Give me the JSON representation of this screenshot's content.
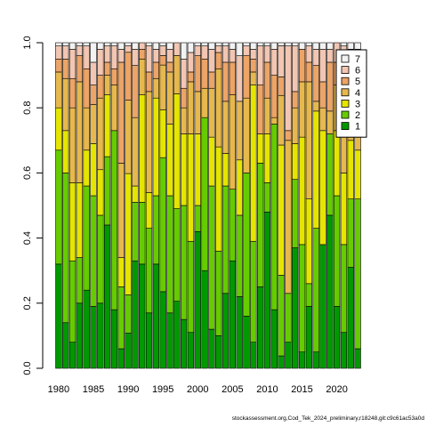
{
  "chart_data": {
    "type": "bar",
    "stacked": true,
    "x": [
      1980,
      1981,
      1982,
      1983,
      1984,
      1985,
      1986,
      1987,
      1988,
      1989,
      1990,
      1991,
      1992,
      1993,
      1994,
      1995,
      1996,
      1997,
      1998,
      1999,
      2000,
      2001,
      2002,
      2003,
      2004,
      2005,
      2006,
      2007,
      2008,
      2009,
      2010,
      2011,
      2012,
      2013,
      2014,
      2015,
      2016,
      2017,
      2018,
      2019,
      2020,
      2021,
      2022,
      2023
    ],
    "x_tick_labels": [
      "1980",
      "1985",
      "1990",
      "1995",
      "2000",
      "2005",
      "2010",
      "2015",
      "2020"
    ],
    "y_tick_labels": [
      "0.0",
      "0.2",
      "0.4",
      "0.6",
      "0.8",
      "1.0"
    ],
    "ylim": [
      0,
      1
    ],
    "legend_position": "top-right",
    "legend_order": [
      "7",
      "6",
      "5",
      "4",
      "3",
      "2",
      "1"
    ],
    "series": [
      {
        "name": "1",
        "color": "#009900",
        "values": [
          0.32,
          0.14,
          0.08,
          0.2,
          0.24,
          0.19,
          0.2,
          0.44,
          0.18,
          0.06,
          0.11,
          0.33,
          0.32,
          0.17,
          0.32,
          0.24,
          0.17,
          0.21,
          0.15,
          0.11,
          0.42,
          0.3,
          0.12,
          0.1,
          0.23,
          0.33,
          0.22,
          0.16,
          0.08,
          0.25,
          0.48,
          0.18,
          0.04,
          0.08,
          0.37,
          0.05,
          0.19,
          0.05,
          0.38,
          0.47,
          0.19,
          0.11,
          0.31,
          0.06
        ]
      },
      {
        "name": "2",
        "color": "#66CC00",
        "values": [
          0.35,
          0.46,
          0.25,
          0.14,
          0.32,
          0.34,
          0.27,
          0.21,
          0.55,
          0.19,
          0.12,
          0.18,
          0.19,
          0.26,
          0.21,
          0.42,
          0.36,
          0.29,
          0.35,
          0.28,
          0.08,
          0.47,
          0.44,
          0.26,
          0.33,
          0.22,
          0.25,
          0.44,
          0.31,
          0.38,
          0.09,
          0.57,
          0.26,
          0.15,
          0.21,
          0.33,
          0.07,
          0.38,
          0.0,
          0.25,
          0.34,
          0.27,
          0.21,
          0.46
        ]
      },
      {
        "name": "3",
        "color": "#E5E500",
        "values": [
          0.13,
          0.13,
          0.24,
          0.23,
          0.11,
          0.16,
          0.14,
          0.19,
          0.0,
          0.09,
          0.38,
          0.05,
          0.33,
          0.11,
          0.3,
          0.15,
          0.22,
          0.36,
          0.22,
          0.33,
          0.22,
          0.0,
          0.15,
          0.32,
          0.1,
          0.0,
          0.17,
          0.0,
          0.48,
          0.09,
          0.15,
          0.0,
          0.42,
          0.0,
          0.11,
          0.33,
          0.26,
          0.36,
          0.35,
          0.0,
          0.2,
          0.22,
          0.18,
          0.15
        ]
      },
      {
        "name": "4",
        "color": "#E6B84D",
        "values": [
          0.11,
          0.16,
          0.23,
          0.31,
          0.13,
          0.12,
          0.22,
          0.06,
          0.14,
          0.29,
          0.23,
          0.21,
          0.11,
          0.31,
          0.06,
          0.14,
          0.16,
          0.12,
          0.08,
          0.16,
          0.13,
          0.09,
          0.15,
          0.24,
          0.16,
          0.29,
          0.18,
          0.23,
          0.04,
          0.0,
          0.11,
          0.02,
          0.16,
          0.47,
          0.11,
          0.17,
          0.36,
          0.03,
          0.07,
          0.07,
          0.14,
          0.14,
          0.09,
          0.1
        ]
      },
      {
        "name": "5",
        "color": "#ECA467",
        "values": [
          0.04,
          0.06,
          0.09,
          0.08,
          0.12,
          0.06,
          0.07,
          0.04,
          0.05,
          0.31,
          0.15,
          0.16,
          0.03,
          0.06,
          0.05,
          0.03,
          0.03,
          0.0,
          0.06,
          0.03,
          0.11,
          0.09,
          0.05,
          0.05,
          0.12,
          0.1,
          0.0,
          0.13,
          0.04,
          0.15,
          0.11,
          0.13,
          0.06,
          0.03,
          0.05,
          0.1,
          0.06,
          0.11,
          0.08,
          0.15,
          0.07,
          0.17,
          0.14,
          0.13
        ]
      },
      {
        "name": "6",
        "color": "#F2C6B2",
        "values": [
          0.04,
          0.04,
          0.09,
          0.03,
          0.07,
          0.07,
          0.08,
          0.05,
          0.07,
          0.04,
          0.02,
          0.05,
          0.02,
          0.08,
          0.04,
          0.03,
          0.04,
          0.04,
          0.09,
          0.06,
          0.03,
          0.04,
          0.07,
          0.02,
          0.05,
          0.04,
          0.14,
          0.03,
          0.03,
          0.12,
          0.05,
          0.08,
          0.1,
          0.26,
          0.14,
          0.0,
          0.05,
          0.05,
          0.1,
          0.04,
          0.06,
          0.08,
          0.05,
          0.08
        ]
      },
      {
        "name": "7",
        "color": "#F2F2F2",
        "values": [
          0.01,
          0.01,
          0.02,
          0.01,
          0.01,
          0.06,
          0.02,
          0.01,
          0.01,
          0.02,
          0.01,
          0.02,
          0.0,
          0.01,
          0.02,
          0.01,
          0.02,
          0.0,
          0.05,
          0.03,
          0.01,
          0.01,
          0.02,
          0.01,
          0.01,
          0.02,
          0.04,
          0.01,
          0.02,
          0.01,
          0.01,
          0.02,
          0.01,
          0.01,
          0.01,
          0.02,
          0.01,
          0.02,
          0.02,
          0.02,
          0.0,
          0.01,
          0.02,
          0.02
        ]
      }
    ]
  },
  "credit_text": "stockassessment.org,Cod_Tek_2024_preliminary,r18248,git:c9c61ac53a0d"
}
